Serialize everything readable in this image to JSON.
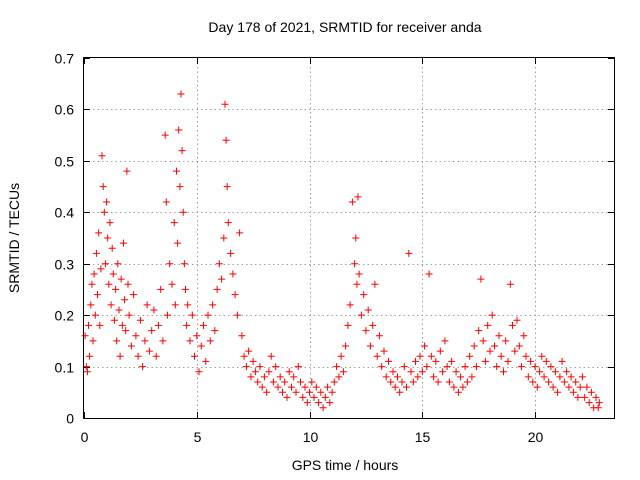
{
  "chart_data": {
    "type": "scatter",
    "title": "Day 178 of 2021, SRMTID for receiver anda",
    "xlabel": "GPS time / hours",
    "ylabel": "SRMTID / TECUs",
    "xlim": [
      0,
      23.5
    ],
    "ylim": [
      0,
      0.7
    ],
    "x_ticks": [
      0,
      5,
      10,
      15,
      20
    ],
    "x_tick_labels": [
      "0",
      "5",
      "10",
      "15",
      "20"
    ],
    "y_ticks": [
      0,
      0.1,
      0.2,
      0.3,
      0.4,
      0.5,
      0.6,
      0.7
    ],
    "y_tick_labels": [
      "0",
      "0.1",
      "0.2",
      "0.3",
      "0.4",
      "0.5",
      "0.6",
      "0.7"
    ],
    "grid": true,
    "marker": "+",
    "color": "#ff0000",
    "series": [
      {
        "name": "SRMTID",
        "points": [
          [
            0.05,
            0.16
          ],
          [
            0.1,
            0.1
          ],
          [
            0.15,
            0.09
          ],
          [
            0.2,
            0.18
          ],
          [
            0.25,
            0.12
          ],
          [
            0.3,
            0.22
          ],
          [
            0.35,
            0.26
          ],
          [
            0.4,
            0.15
          ],
          [
            0.45,
            0.28
          ],
          [
            0.5,
            0.2
          ],
          [
            0.55,
            0.32
          ],
          [
            0.6,
            0.24
          ],
          [
            0.65,
            0.36
          ],
          [
            0.7,
            0.18
          ],
          [
            0.75,
            0.29
          ],
          [
            0.8,
            0.51
          ],
          [
            0.85,
            0.45
          ],
          [
            0.9,
            0.4
          ],
          [
            0.95,
            0.3
          ],
          [
            1.0,
            0.42
          ],
          [
            1.05,
            0.35
          ],
          [
            1.1,
            0.26
          ],
          [
            1.15,
            0.38
          ],
          [
            1.2,
            0.22
          ],
          [
            1.25,
            0.33
          ],
          [
            1.3,
            0.28
          ],
          [
            1.35,
            0.19
          ],
          [
            1.4,
            0.25
          ],
          [
            1.45,
            0.15
          ],
          [
            1.5,
            0.3
          ],
          [
            1.55,
            0.21
          ],
          [
            1.6,
            0.12
          ],
          [
            1.65,
            0.27
          ],
          [
            1.7,
            0.18
          ],
          [
            1.75,
            0.34
          ],
          [
            1.8,
            0.23
          ],
          [
            1.85,
            0.17
          ],
          [
            1.9,
            0.48
          ],
          [
            1.95,
            0.26
          ],
          [
            2.0,
            0.2
          ],
          [
            2.1,
            0.14
          ],
          [
            2.2,
            0.24
          ],
          [
            2.3,
            0.16
          ],
          [
            2.4,
            0.12
          ],
          [
            2.5,
            0.19
          ],
          [
            2.6,
            0.1
          ],
          [
            2.7,
            0.15
          ],
          [
            2.8,
            0.22
          ],
          [
            2.9,
            0.13
          ],
          [
            3.0,
            0.17
          ],
          [
            3.1,
            0.21
          ],
          [
            3.2,
            0.12
          ],
          [
            3.3,
            0.18
          ],
          [
            3.4,
            0.25
          ],
          [
            3.5,
            0.15
          ],
          [
            3.6,
            0.55
          ],
          [
            3.65,
            0.42
          ],
          [
            3.7,
            0.2
          ],
          [
            3.8,
            0.3
          ],
          [
            3.9,
            0.26
          ],
          [
            4.0,
            0.38
          ],
          [
            4.05,
            0.22
          ],
          [
            4.1,
            0.48
          ],
          [
            4.15,
            0.34
          ],
          [
            4.2,
            0.56
          ],
          [
            4.25,
            0.45
          ],
          [
            4.3,
            0.63
          ],
          [
            4.35,
            0.52
          ],
          [
            4.4,
            0.4
          ],
          [
            4.45,
            0.3
          ],
          [
            4.5,
            0.25
          ],
          [
            4.55,
            0.18
          ],
          [
            4.6,
            0.22
          ],
          [
            4.7,
            0.15
          ],
          [
            4.8,
            0.2
          ],
          [
            4.9,
            0.12
          ],
          [
            5.0,
            0.16
          ],
          [
            5.1,
            0.09
          ],
          [
            5.2,
            0.14
          ],
          [
            5.3,
            0.18
          ],
          [
            5.4,
            0.11
          ],
          [
            5.5,
            0.2
          ],
          [
            5.6,
            0.15
          ],
          [
            5.7,
            0.22
          ],
          [
            5.8,
            0.17
          ],
          [
            5.9,
            0.25
          ],
          [
            6.0,
            0.3
          ],
          [
            6.1,
            0.27
          ],
          [
            6.2,
            0.35
          ],
          [
            6.25,
            0.61
          ],
          [
            6.3,
            0.54
          ],
          [
            6.35,
            0.45
          ],
          [
            6.4,
            0.38
          ],
          [
            6.5,
            0.32
          ],
          [
            6.6,
            0.28
          ],
          [
            6.7,
            0.24
          ],
          [
            6.8,
            0.2
          ],
          [
            6.9,
            0.36
          ],
          [
            7.0,
            0.16
          ],
          [
            7.1,
            0.12
          ],
          [
            7.2,
            0.1
          ],
          [
            7.3,
            0.13
          ],
          [
            7.4,
            0.08
          ],
          [
            7.5,
            0.11
          ],
          [
            7.6,
            0.09
          ],
          [
            7.7,
            0.07
          ],
          [
            7.8,
            0.1
          ],
          [
            7.9,
            0.06
          ],
          [
            8.0,
            0.08
          ],
          [
            8.1,
            0.05
          ],
          [
            8.2,
            0.09
          ],
          [
            8.3,
            0.12
          ],
          [
            8.4,
            0.07
          ],
          [
            8.5,
            0.1
          ],
          [
            8.6,
            0.06
          ],
          [
            8.7,
            0.08
          ],
          [
            8.8,
            0.05
          ],
          [
            8.9,
            0.07
          ],
          [
            9.0,
            0.04
          ],
          [
            9.1,
            0.09
          ],
          [
            9.2,
            0.06
          ],
          [
            9.3,
            0.08
          ],
          [
            9.4,
            0.05
          ],
          [
            9.5,
            0.1
          ],
          [
            9.6,
            0.07
          ],
          [
            9.7,
            0.04
          ],
          [
            9.8,
            0.06
          ],
          [
            9.9,
            0.03
          ],
          [
            10.0,
            0.05
          ],
          [
            10.1,
            0.07
          ],
          [
            10.2,
            0.04
          ],
          [
            10.3,
            0.06
          ],
          [
            10.4,
            0.03
          ],
          [
            10.5,
            0.05
          ],
          [
            10.6,
            0.02
          ],
          [
            10.7,
            0.04
          ],
          [
            10.8,
            0.06
          ],
          [
            10.9,
            0.03
          ],
          [
            11.0,
            0.05
          ],
          [
            11.1,
            0.07
          ],
          [
            11.2,
            0.1
          ],
          [
            11.3,
            0.08
          ],
          [
            11.4,
            0.12
          ],
          [
            11.5,
            0.09
          ],
          [
            11.6,
            0.14
          ],
          [
            11.7,
            0.18
          ],
          [
            11.8,
            0.22
          ],
          [
            11.9,
            0.42
          ],
          [
            12.0,
            0.3
          ],
          [
            12.05,
            0.35
          ],
          [
            12.1,
            0.26
          ],
          [
            12.15,
            0.43
          ],
          [
            12.2,
            0.28
          ],
          [
            12.3,
            0.2
          ],
          [
            12.4,
            0.24
          ],
          [
            12.5,
            0.17
          ],
          [
            12.6,
            0.21
          ],
          [
            12.7,
            0.14
          ],
          [
            12.8,
            0.18
          ],
          [
            12.9,
            0.26
          ],
          [
            13.0,
            0.12
          ],
          [
            13.1,
            0.16
          ],
          [
            13.2,
            0.1
          ],
          [
            13.3,
            0.13
          ],
          [
            13.4,
            0.08
          ],
          [
            13.5,
            0.11
          ],
          [
            13.6,
            0.07
          ],
          [
            13.7,
            0.09
          ],
          [
            13.8,
            0.06
          ],
          [
            13.9,
            0.08
          ],
          [
            14.0,
            0.05
          ],
          [
            14.1,
            0.07
          ],
          [
            14.2,
            0.1
          ],
          [
            14.3,
            0.06
          ],
          [
            14.4,
            0.32
          ],
          [
            14.5,
            0.09
          ],
          [
            14.6,
            0.07
          ],
          [
            14.7,
            0.11
          ],
          [
            14.8,
            0.08
          ],
          [
            14.9,
            0.12
          ],
          [
            15.0,
            0.09
          ],
          [
            15.1,
            0.14
          ],
          [
            15.2,
            0.1
          ],
          [
            15.3,
            0.28
          ],
          [
            15.4,
            0.12
          ],
          [
            15.5,
            0.08
          ],
          [
            15.6,
            0.11
          ],
          [
            15.7,
            0.07
          ],
          [
            15.8,
            0.13
          ],
          [
            15.9,
            0.09
          ],
          [
            16.0,
            0.15
          ],
          [
            16.1,
            0.1
          ],
          [
            16.2,
            0.07
          ],
          [
            16.3,
            0.11
          ],
          [
            16.4,
            0.06
          ],
          [
            16.5,
            0.09
          ],
          [
            16.6,
            0.05
          ],
          [
            16.7,
            0.08
          ],
          [
            16.8,
            0.06
          ],
          [
            16.9,
            0.1
          ],
          [
            17.0,
            0.07
          ],
          [
            17.1,
            0.12
          ],
          [
            17.2,
            0.08
          ],
          [
            17.3,
            0.14
          ],
          [
            17.4,
            0.1
          ],
          [
            17.5,
            0.17
          ],
          [
            17.6,
            0.27
          ],
          [
            17.7,
            0.15
          ],
          [
            17.8,
            0.11
          ],
          [
            17.9,
            0.18
          ],
          [
            18.0,
            0.13
          ],
          [
            18.1,
            0.2
          ],
          [
            18.2,
            0.14
          ],
          [
            18.3,
            0.1
          ],
          [
            18.4,
            0.16
          ],
          [
            18.5,
            0.12
          ],
          [
            18.6,
            0.09
          ],
          [
            18.7,
            0.15
          ],
          [
            18.8,
            0.11
          ],
          [
            18.9,
            0.26
          ],
          [
            19.0,
            0.18
          ],
          [
            19.1,
            0.13
          ],
          [
            19.2,
            0.19
          ],
          [
            19.3,
            0.14
          ],
          [
            19.4,
            0.1
          ],
          [
            19.5,
            0.16
          ],
          [
            19.6,
            0.12
          ],
          [
            19.7,
            0.08
          ],
          [
            19.8,
            0.11
          ],
          [
            19.9,
            0.07
          ],
          [
            20.0,
            0.1
          ],
          [
            20.1,
            0.06
          ],
          [
            20.2,
            0.09
          ],
          [
            20.3,
            0.12
          ],
          [
            20.4,
            0.08
          ],
          [
            20.5,
            0.11
          ],
          [
            20.6,
            0.07
          ],
          [
            20.7,
            0.1
          ],
          [
            20.8,
            0.06
          ],
          [
            20.9,
            0.09
          ],
          [
            21.0,
            0.05
          ],
          [
            21.1,
            0.08
          ],
          [
            21.2,
            0.11
          ],
          [
            21.3,
            0.07
          ],
          [
            21.4,
            0.09
          ],
          [
            21.5,
            0.06
          ],
          [
            21.6,
            0.08
          ],
          [
            21.7,
            0.05
          ],
          [
            21.8,
            0.07
          ],
          [
            21.9,
            0.04
          ],
          [
            22.0,
            0.06
          ],
          [
            22.1,
            0.08
          ],
          [
            22.2,
            0.04
          ],
          [
            22.3,
            0.06
          ],
          [
            22.4,
            0.03
          ],
          [
            22.5,
            0.05
          ],
          [
            22.6,
            0.02
          ],
          [
            22.7,
            0.04
          ],
          [
            22.8,
            0.02
          ],
          [
            22.85,
            0.03
          ]
        ]
      }
    ]
  }
}
